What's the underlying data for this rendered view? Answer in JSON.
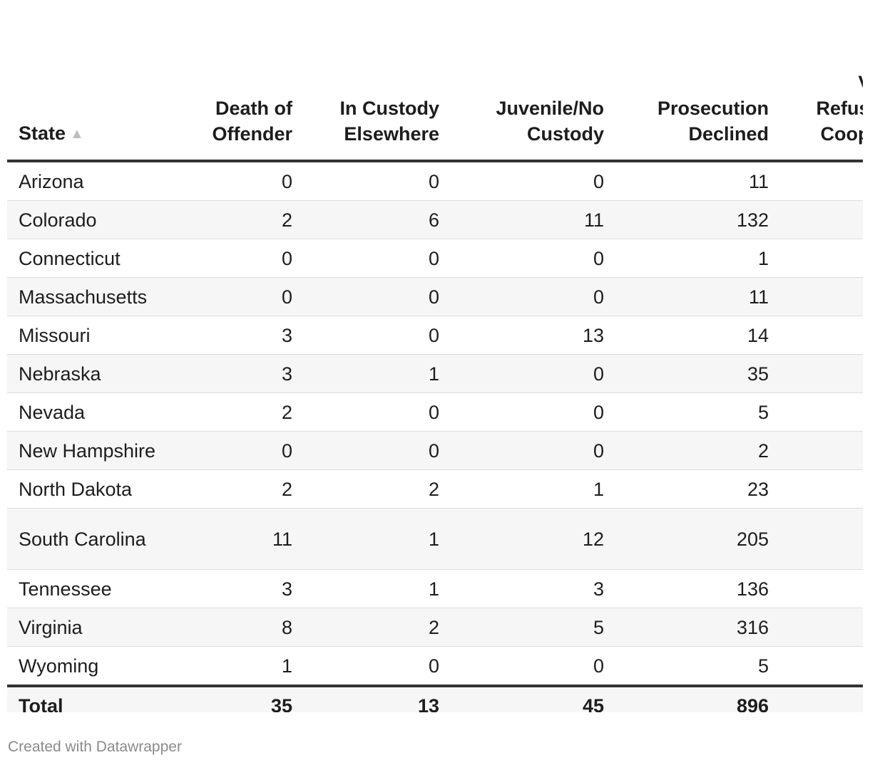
{
  "table": {
    "headers": [
      "State",
      "Death of Offender",
      "In Custody Elsewhere",
      "Juvenile/No Custody",
      "Prosecution Declined",
      "Victim Refused to Cooperate"
    ],
    "sort_icon": "triangle-up-icon",
    "rows": [
      {
        "state": "Arizona",
        "death": "0",
        "custody": "0",
        "juvenile": "0",
        "declined": "11"
      },
      {
        "state": "Colorado",
        "death": "2",
        "custody": "6",
        "juvenile": "11",
        "declined": "132"
      },
      {
        "state": "Connecticut",
        "death": "0",
        "custody": "0",
        "juvenile": "0",
        "declined": "1"
      },
      {
        "state": "Massachusetts",
        "death": "0",
        "custody": "0",
        "juvenile": "0",
        "declined": "11"
      },
      {
        "state": "Missouri",
        "death": "3",
        "custody": "0",
        "juvenile": "13",
        "declined": "14"
      },
      {
        "state": "Nebraska",
        "death": "3",
        "custody": "1",
        "juvenile": "0",
        "declined": "35"
      },
      {
        "state": "Nevada",
        "death": "2",
        "custody": "0",
        "juvenile": "0",
        "declined": "5"
      },
      {
        "state": "New Hampshire",
        "death": "0",
        "custody": "0",
        "juvenile": "0",
        "declined": "2"
      },
      {
        "state": "North Dakota",
        "death": "2",
        "custody": "2",
        "juvenile": "1",
        "declined": "23"
      },
      {
        "state": "South Carolina",
        "death": "11",
        "custody": "1",
        "juvenile": "12",
        "declined": "205"
      },
      {
        "state": "Tennessee",
        "death": "3",
        "custody": "1",
        "juvenile": "3",
        "declined": "136"
      },
      {
        "state": "Virginia",
        "death": "8",
        "custody": "2",
        "juvenile": "5",
        "declined": "316"
      },
      {
        "state": "Wyoming",
        "death": "1",
        "custody": "0",
        "juvenile": "0",
        "declined": "5"
      }
    ],
    "total": {
      "label": "Total",
      "death": "35",
      "custody": "13",
      "juvenile": "45",
      "declined": "896"
    }
  },
  "footer": "Created with Datawrapper",
  "colors": {
    "header_rule": "#333333",
    "stripe": "#f6f6f6",
    "footer_text": "#8b8b8b"
  }
}
